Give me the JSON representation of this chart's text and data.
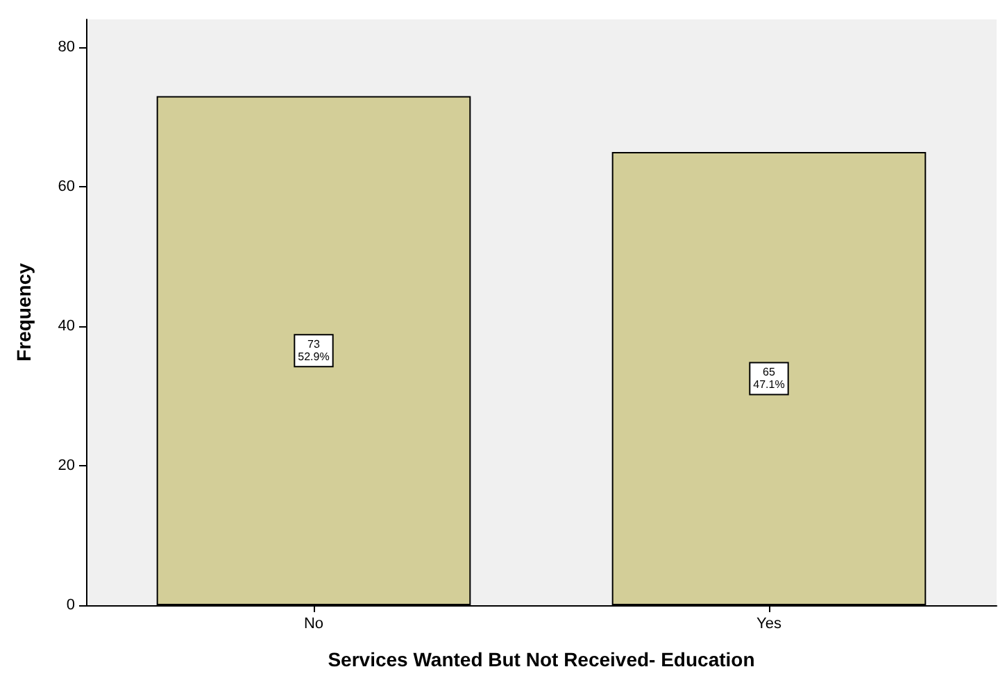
{
  "chart_data": {
    "type": "bar",
    "xlabel": "Services Wanted But Not Received- Education",
    "ylabel": "Frequency",
    "categories": [
      "No",
      "Yes"
    ],
    "values": [
      73,
      65
    ],
    "value_labels": [
      "73\n52.9%",
      "65\n47.1%"
    ],
    "color": "#d3ce98",
    "ylim": [
      0,
      84
    ],
    "yticks": [
      0,
      20,
      40,
      60,
      80
    ],
    "grid": false
  }
}
